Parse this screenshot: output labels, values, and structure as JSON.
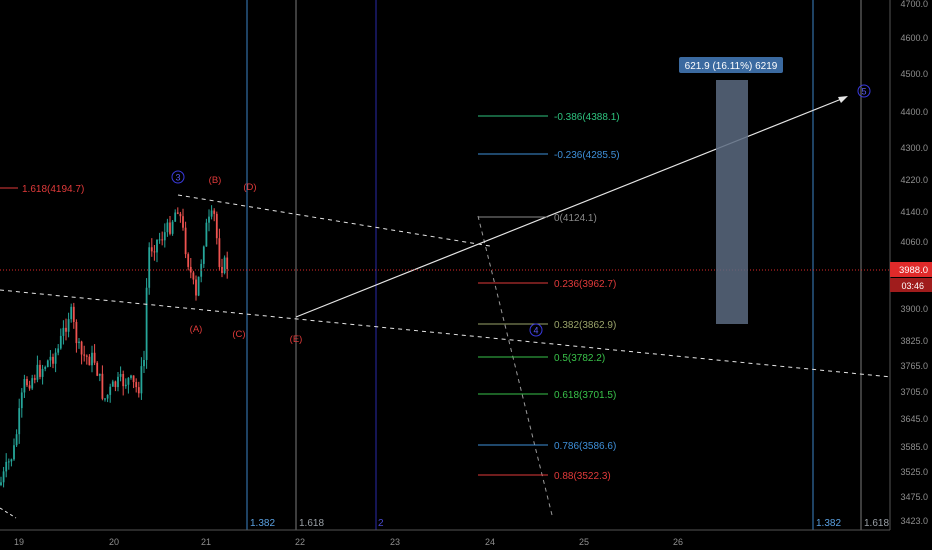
{
  "chart_data": {
    "type": "candlestick",
    "symbol_timeframe": "",
    "x_labels": [
      "19",
      "20",
      "21",
      "22",
      "23",
      "24",
      "25",
      "26"
    ],
    "y_ticks": [
      "4700.0",
      "4600.0",
      "4500.0",
      "4400.0",
      "4300.0",
      "4220.0",
      "4140.0",
      "4060.0",
      "3988.0",
      "3900.0",
      "3825.0",
      "3765.0",
      "3705.0",
      "3645.0",
      "3585.0",
      "3525.0",
      "3475.0",
      "3423.0"
    ],
    "last_price": {
      "value": "3988.0",
      "countdown": "03:46",
      "color": "#e02a2a"
    },
    "fib_label_left": "1.618(4194.7)",
    "fib_levels": [
      {
        "label": "-0.386(4388.1)",
        "color": "#2ec27e"
      },
      {
        "label": "-0.236(4285.5)",
        "color": "#3e8fd8"
      },
      {
        "label": "0(4124.1)",
        "color": "#8a8a8a"
      },
      {
        "label": "0.236(3962.7)",
        "color": "#e03a3a"
      },
      {
        "label": "0.382(3862.9)",
        "color": "#9aa36a"
      },
      {
        "label": "0.5(3782.2)",
        "color": "#39c24a"
      },
      {
        "label": "0.618(3701.5)",
        "color": "#39c24a"
      },
      {
        "label": "0.786(3586.6)",
        "color": "#3e8fd8"
      },
      {
        "label": "0.88(3522.3)",
        "color": "#e03a3a"
      }
    ],
    "time_fib_labels": [
      {
        "label": "1.382",
        "color": "#5aa0e0"
      },
      {
        "label": "1.618",
        "color": "#9aa0a6"
      },
      {
        "label": "2",
        "color": "#4a4ad0"
      },
      {
        "label": "1.382",
        "color": "#5aa0e0"
      },
      {
        "label": "1.618",
        "color": "#9aa0a6"
      }
    ],
    "wave_labels_circled": [
      "3",
      "4",
      "5"
    ],
    "wave_labels": [
      "(A)",
      "(B)",
      "(C)",
      "(D)",
      "(E)"
    ],
    "measure_box": {
      "label": "621.9 (16.11%) 6219"
    },
    "colors": {
      "background": "#000000",
      "up": "#26a69a",
      "down": "#ef5350",
      "axis_text": "#8f8f8f",
      "price_line": "#e02a2a"
    }
  }
}
